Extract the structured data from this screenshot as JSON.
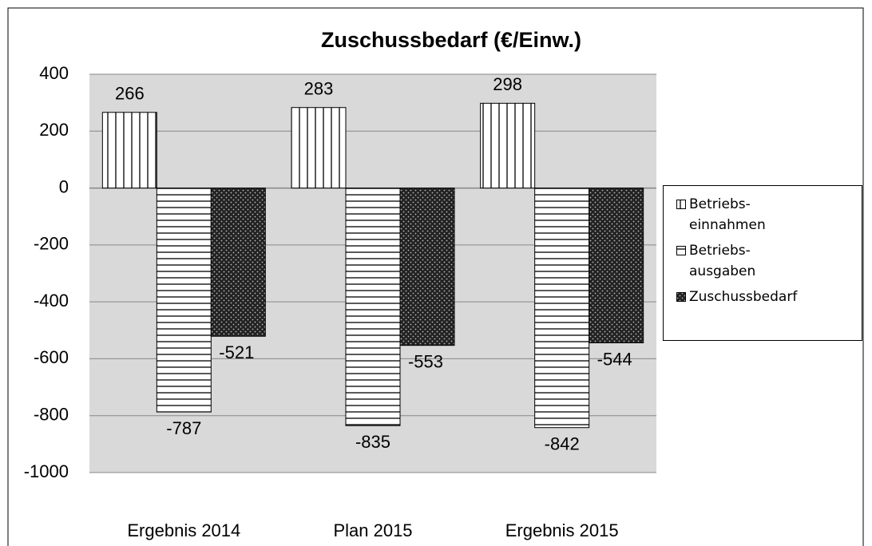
{
  "chart_data": {
    "type": "bar",
    "title": "Zuschussbedarf  (€/Einw.)",
    "categories": [
      "Ergebnis 2014",
      "Plan 2015",
      "Ergebnis 2015"
    ],
    "series": [
      {
        "name": "Betriebs-\neinnahmen",
        "pattern": "vertical",
        "values": [
          266,
          283,
          298
        ]
      },
      {
        "name": "Betriebs-\nausgaben",
        "pattern": "horizontal",
        "values": [
          -787,
          -835,
          -842
        ]
      },
      {
        "name": "Zuschussbedarf",
        "pattern": "dots",
        "values": [
          -521,
          -553,
          -544
        ]
      }
    ],
    "ylim": [
      -1000,
      400
    ],
    "yticks": [
      -1000,
      -800,
      -600,
      -400,
      -200,
      0,
      200,
      400
    ],
    "grid": true,
    "legend": "right"
  }
}
